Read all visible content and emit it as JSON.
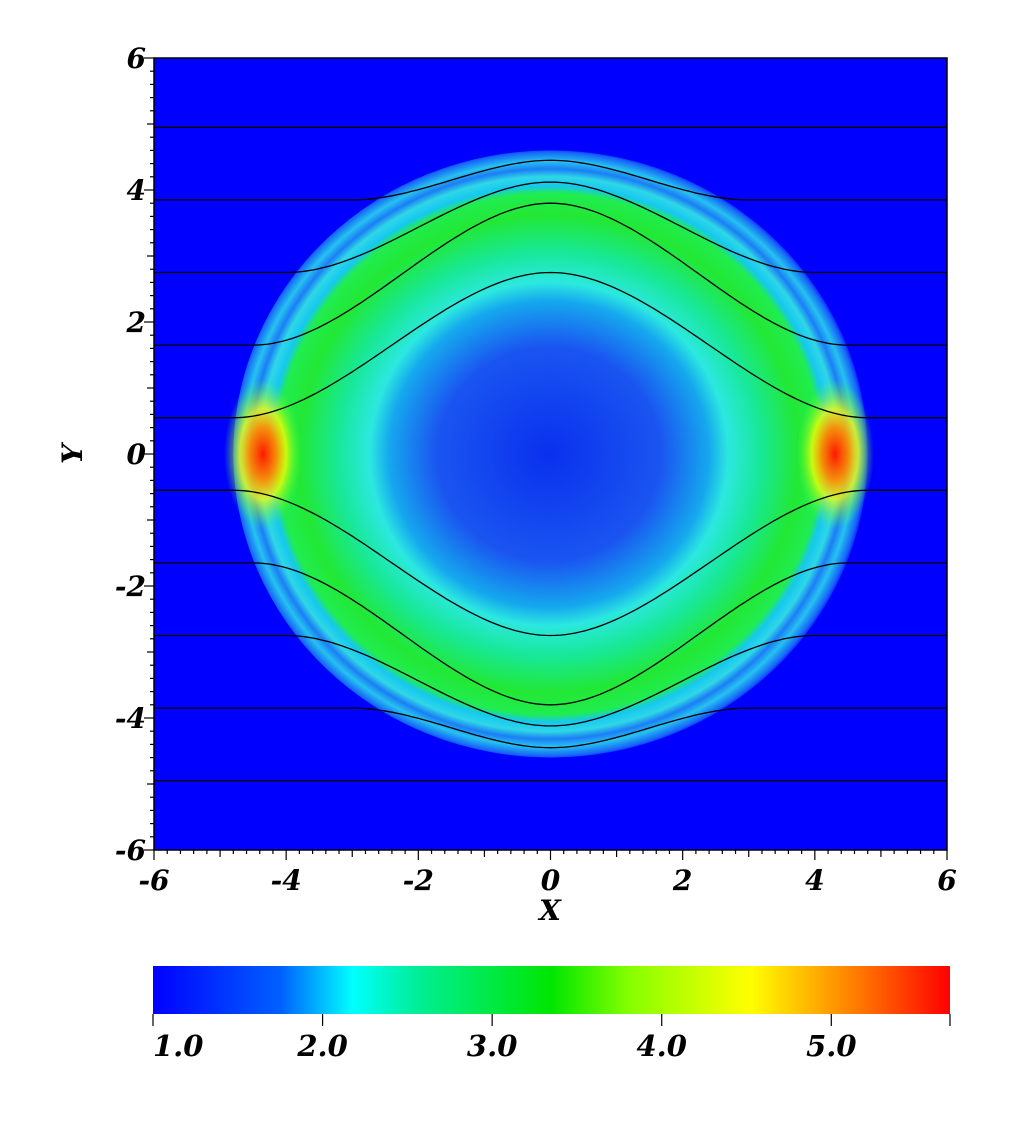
{
  "chart_data": {
    "type": "heatmap",
    "title": "",
    "xlabel": "X",
    "ylabel": "Y",
    "xlim": [
      -6,
      6
    ],
    "ylim": [
      -6,
      6
    ],
    "x_ticks": [
      "-6",
      "-4",
      "-2",
      "0",
      "2",
      "4",
      "6"
    ],
    "y_ticks": [
      "6",
      "4",
      "2",
      "0",
      "-2",
      "-4",
      "-6"
    ],
    "x_tick_values": [
      -6,
      -4,
      -2,
      0,
      2,
      4,
      6
    ],
    "y_tick_values": [
      6,
      4,
      2,
      0,
      -2,
      -4,
      -6
    ],
    "colorbar": {
      "range": [
        1.0,
        5.7
      ],
      "tick_labels": [
        "1.0",
        "2.0",
        "3.0",
        "4.0",
        "5.0"
      ],
      "tick_values": [
        1.0,
        2.0,
        3.0,
        4.0,
        5.0
      ],
      "colors": [
        "#0000ff",
        "#00ffff",
        "#00ff00",
        "#ffff00",
        "#ff0000"
      ]
    },
    "field_regions": [
      {
        "name": "background",
        "value": 1.0
      },
      {
        "name": "central-cavity",
        "value": 1.3
      },
      {
        "name": "inner-ring",
        "value": 2.0
      },
      {
        "name": "shell",
        "value": 3.0
      },
      {
        "name": "shell-tips",
        "value": 5.6
      }
    ],
    "shell": {
      "x_semi_axis": 4.8,
      "y_semi_axis": 4.6,
      "inner_radius": 3.4
    },
    "streamlines": {
      "color": "#000000",
      "y_levels": [
        4.95,
        3.85,
        2.75,
        1.65,
        0.55,
        -0.55,
        -1.65,
        -2.75,
        -3.85,
        -4.95
      ],
      "y_at_center": [
        4.95,
        4.45,
        4.12,
        3.8,
        2.75,
        -2.75,
        -3.8,
        -4.12,
        -4.45,
        -4.95
      ],
      "x_deflect": [
        6.0,
        3.0,
        4.0,
        4.5,
        4.8,
        4.8,
        4.5,
        4.0,
        3.0,
        6.0
      ]
    }
  }
}
